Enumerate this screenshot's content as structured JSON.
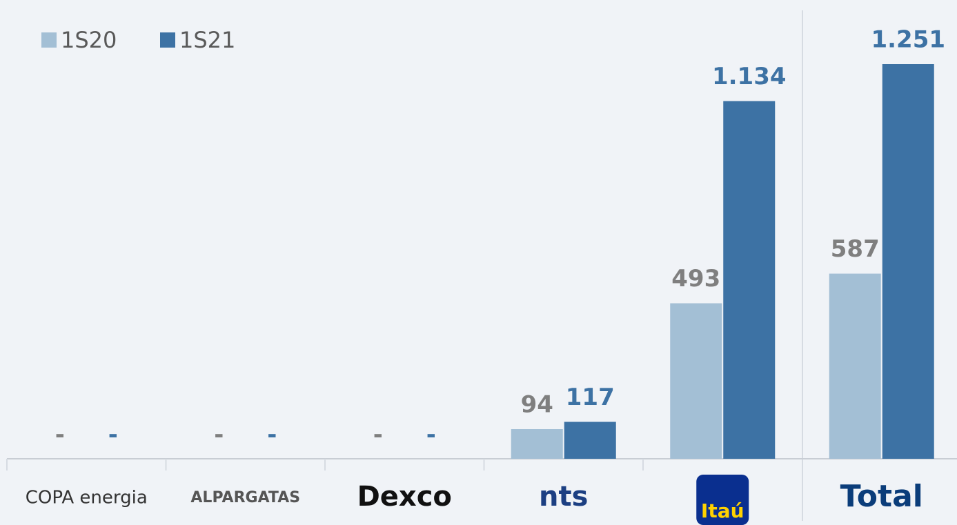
{
  "chart_data": {
    "type": "bar",
    "categories": [
      "COPA energia",
      "ALPARGATAS",
      "Dexco",
      "nts",
      "Itaú",
      "Total"
    ],
    "series": [
      {
        "name": "1S20",
        "color": "#a3bfd5",
        "values": [
          0,
          0,
          0,
          94,
          493,
          587
        ],
        "value_labels": [
          "-",
          "-",
          "-",
          "94",
          "493",
          "587"
        ]
      },
      {
        "name": "1S21",
        "color": "#3d72a4",
        "values": [
          0,
          0,
          0,
          117,
          1134,
          1251
        ],
        "value_labels": [
          "-",
          "-",
          "-",
          "117",
          "1.134",
          "1.251"
        ]
      }
    ],
    "ylim": [
      0,
      1251
    ]
  }
}
